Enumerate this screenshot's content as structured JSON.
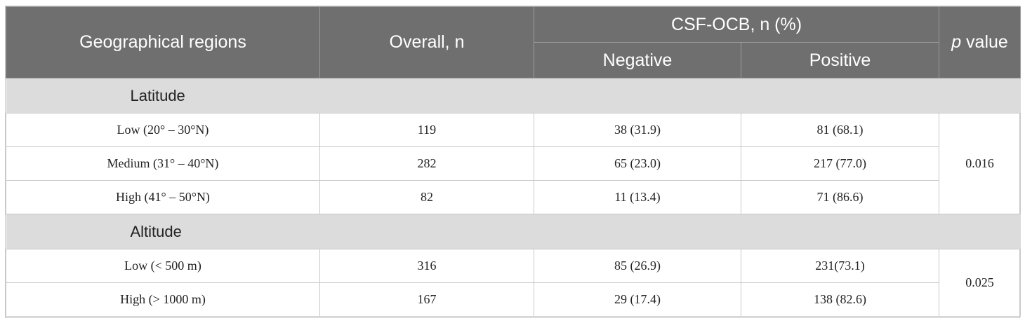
{
  "header": {
    "col_region": "Geographical regions",
    "col_overall": "Overall, n",
    "col_group": "CSF-OCB, n (%)",
    "col_negative": "Negative",
    "col_positive": "Positive",
    "col_p_italic": "p",
    "col_p_rest": " value"
  },
  "sections": [
    {
      "title": "Latitude",
      "p_value": "0.016",
      "rows": [
        {
          "region": "Low (20° – 30°N)",
          "overall": "119",
          "negative": "38 (31.9)",
          "positive": "81 (68.1)"
        },
        {
          "region": "Medium (31° – 40°N)",
          "overall": "282",
          "negative": "65 (23.0)",
          "positive": "217 (77.0)"
        },
        {
          "region": "High (41° – 50°N)",
          "overall": "82",
          "negative": "11 (13.4)",
          "positive": "71 (86.6)"
        }
      ]
    },
    {
      "title": "Altitude",
      "p_value": "0.025",
      "rows": [
        {
          "region": "Low (< 500 m)",
          "overall": "316",
          "negative": "85 (26.9)",
          "positive": "231(73.1)"
        },
        {
          "region": "High (> 1000 m)",
          "overall": "167",
          "negative": "29 (17.4)",
          "positive": "138 (82.6)"
        }
      ]
    }
  ]
}
